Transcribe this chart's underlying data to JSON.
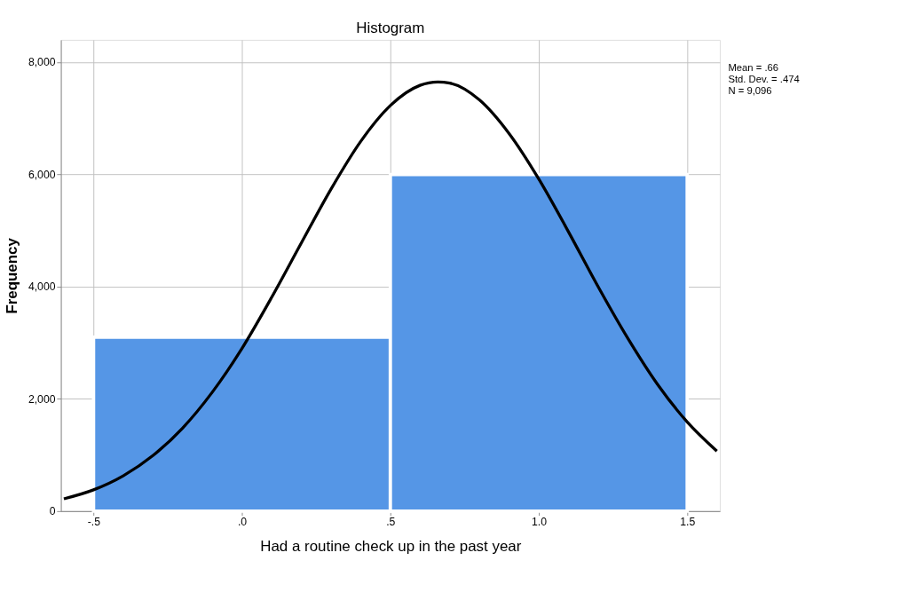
{
  "chart_data": {
    "type": "histogram",
    "title": "Histogram",
    "xlabel": "Had a routine check up in the past year",
    "ylabel": "Frequency",
    "bins": [
      -0.5,
      0.5,
      1.5
    ],
    "values": [
      3100,
      6000
    ],
    "color": "#5596e6",
    "series": [
      {
        "type": "line",
        "color": "#000000",
        "x": [
          -0.6,
          -0.5,
          -0.4,
          -0.3,
          -0.2,
          -0.1,
          0.0,
          0.1,
          0.2,
          0.3,
          0.4,
          0.5,
          0.6,
          0.66,
          0.7,
          0.8,
          0.9,
          1.0,
          1.1,
          1.2,
          1.3,
          1.4,
          1.5,
          1.6
        ],
        "values": [
          220,
          380,
          630,
          990,
          1480,
          2120,
          2900,
          3810,
          4780,
          5740,
          6590,
          7230,
          7590,
          7650,
          7630,
          7330,
          6730,
          5920,
          4980,
          4000,
          3080,
          2260,
          1590,
          1070
        ]
      }
    ],
    "xlim": [
      -0.61,
      1.61
    ],
    "ylim": [
      0,
      8400
    ],
    "xticks": [
      {
        "value": -0.5,
        "label": "-.5"
      },
      {
        "value": 0,
        "label": ".0"
      },
      {
        "value": 0.5,
        "label": ".5"
      },
      {
        "value": 1.0,
        "label": "1.0"
      },
      {
        "value": 1.5,
        "label": "1.5"
      }
    ],
    "yticks": [
      0,
      {
        "value": 2000,
        "label": "2,000"
      },
      {
        "value": 4000,
        "label": "4,000"
      },
      {
        "value": 6000,
        "label": "6,000"
      },
      {
        "value": 8000,
        "label": "8,000"
      }
    ],
    "grid": true,
    "annotations": [
      "Mean = .66",
      "Std. Dev. = .474",
      "N = 9,096"
    ]
  }
}
